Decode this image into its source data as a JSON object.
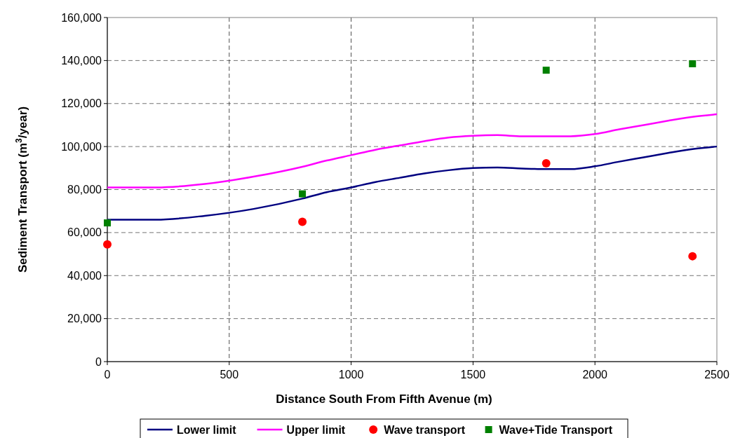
{
  "chart_data": {
    "type": "line",
    "xlabel": "Distance South From Fifth Avenue (m)",
    "ylabel": "Sediment Transport (m$^{3}$/year)",
    "xlim": [
      0,
      2500
    ],
    "xticks": [
      0,
      500,
      1000,
      1500,
      2000,
      2500
    ],
    "ylim": [
      0,
      160000
    ],
    "yticks": [
      {
        "value": 0,
        "label": "0"
      },
      {
        "value": 20000,
        "label": "20,000"
      },
      {
        "value": 40000,
        "label": "40,000"
      },
      {
        "value": 60000,
        "label": "60,000"
      },
      {
        "value": 80000,
        "label": "80,000"
      },
      {
        "value": 100000,
        "label": "100,000"
      },
      {
        "value": 120000,
        "label": "120,000"
      },
      {
        "value": 140000,
        "label": "140,000"
      },
      {
        "value": 160000,
        "label": "160,000"
      }
    ],
    "grid": true,
    "legend": "bottom",
    "line_style": "solid",
    "series": [
      {
        "name": "Lower limit",
        "color": "#000080",
        "x": [
          0,
          200,
          400,
          600,
          800,
          900,
          1000,
          1100,
          1200,
          1300,
          1400,
          1500,
          1600,
          1700,
          1800,
          1900,
          2000,
          2100,
          2200,
          2300,
          2400,
          2500
        ],
        "values": [
          66000,
          66000,
          67800,
          71000,
          75800,
          78800,
          81000,
          83500,
          85500,
          87500,
          89000,
          90000,
          90300,
          89800,
          89500,
          89500,
          90800,
          93000,
          95000,
          97000,
          98800,
          100000
        ]
      },
      {
        "name": "Upper limit",
        "color": "#ff00ff",
        "x": [
          0,
          200,
          400,
          600,
          800,
          900,
          1000,
          1100,
          1200,
          1300,
          1400,
          1500,
          1600,
          1700,
          1800,
          1900,
          2000,
          2100,
          2200,
          2300,
          2400,
          2500
        ],
        "values": [
          81000,
          81000,
          82600,
          86000,
          90600,
          93500,
          96000,
          98500,
          100500,
          102500,
          104200,
          105000,
          105300,
          104800,
          104800,
          104800,
          105800,
          108000,
          110000,
          112000,
          113800,
          115000
        ]
      },
      {
        "name": "Wave transport",
        "type": "scatter",
        "color": "#ff0000",
        "marker": "circle",
        "x": [
          0,
          800,
          1800,
          2400
        ],
        "values": [
          54500,
          65000,
          92200,
          49000
        ]
      },
      {
        "name": "Wave+Tide Transport",
        "type": "scatter",
        "color": "#008000",
        "marker": "square",
        "x": [
          0,
          800,
          1800,
          2400
        ],
        "values": [
          64500,
          78000,
          135500,
          138500
        ]
      }
    ]
  }
}
